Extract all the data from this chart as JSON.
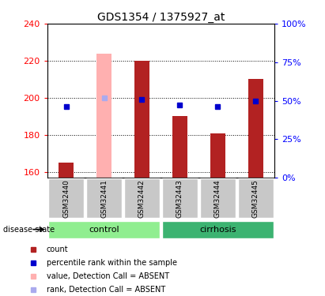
{
  "title": "GDS1354 / 1375927_at",
  "samples": [
    "GSM32440",
    "GSM32441",
    "GSM32442",
    "GSM32443",
    "GSM32444",
    "GSM32445"
  ],
  "bar_values": [
    165,
    null,
    220,
    190,
    181,
    210
  ],
  "bar_absent_values": [
    null,
    224,
    null,
    null,
    null,
    null
  ],
  "rank_values_pct": [
    46,
    null,
    51,
    47,
    46,
    50
  ],
  "rank_absent_values_pct": [
    null,
    52,
    null,
    null,
    null,
    null
  ],
  "ylim_left": [
    157,
    240
  ],
  "ylim_right": [
    0,
    100
  ],
  "yticks_left": [
    160,
    180,
    200,
    220,
    240
  ],
  "yticks_right": [
    0,
    25,
    50,
    75,
    100
  ],
  "ytick_labels_right": [
    "0%",
    "25%",
    "50%",
    "75%",
    "100%"
  ],
  "bar_color": "#b22222",
  "bar_absent_color": "#ffb0b0",
  "rank_color": "#0000cd",
  "rank_absent_color": "#aaaaee",
  "control_color": "#90ee90",
  "cirrhosis_color": "#3cb371",
  "sample_bg_color": "#c8c8c8",
  "title_fontsize": 10,
  "tick_fontsize": 8,
  "bar_width": 0.4,
  "baseline": 157
}
